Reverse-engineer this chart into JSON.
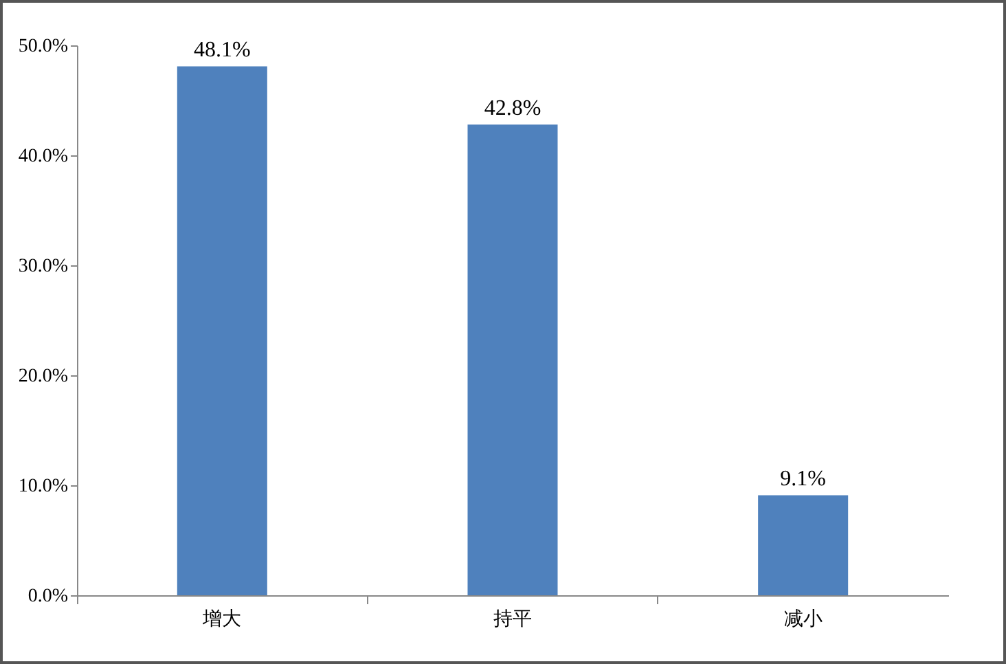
{
  "chart_data": {
    "type": "bar",
    "categories": [
      "增大",
      "持平",
      "减小"
    ],
    "values": [
      48.1,
      42.8,
      9.1
    ],
    "color": "#4f81bd",
    "value_labels": [
      "48.1%",
      "42.8%",
      "9.1%"
    ],
    "ylim": [
      0,
      50
    ],
    "yticks": [
      {
        "value": 0,
        "label": "0.0%"
      },
      {
        "value": 10,
        "label": "10.0%"
      },
      {
        "value": 20,
        "label": "20.0%"
      },
      {
        "value": 30,
        "label": "30.0%"
      },
      {
        "value": 40,
        "label": "40.0%"
      },
      {
        "value": 50,
        "label": "50.0%"
      }
    ],
    "grid": false
  }
}
